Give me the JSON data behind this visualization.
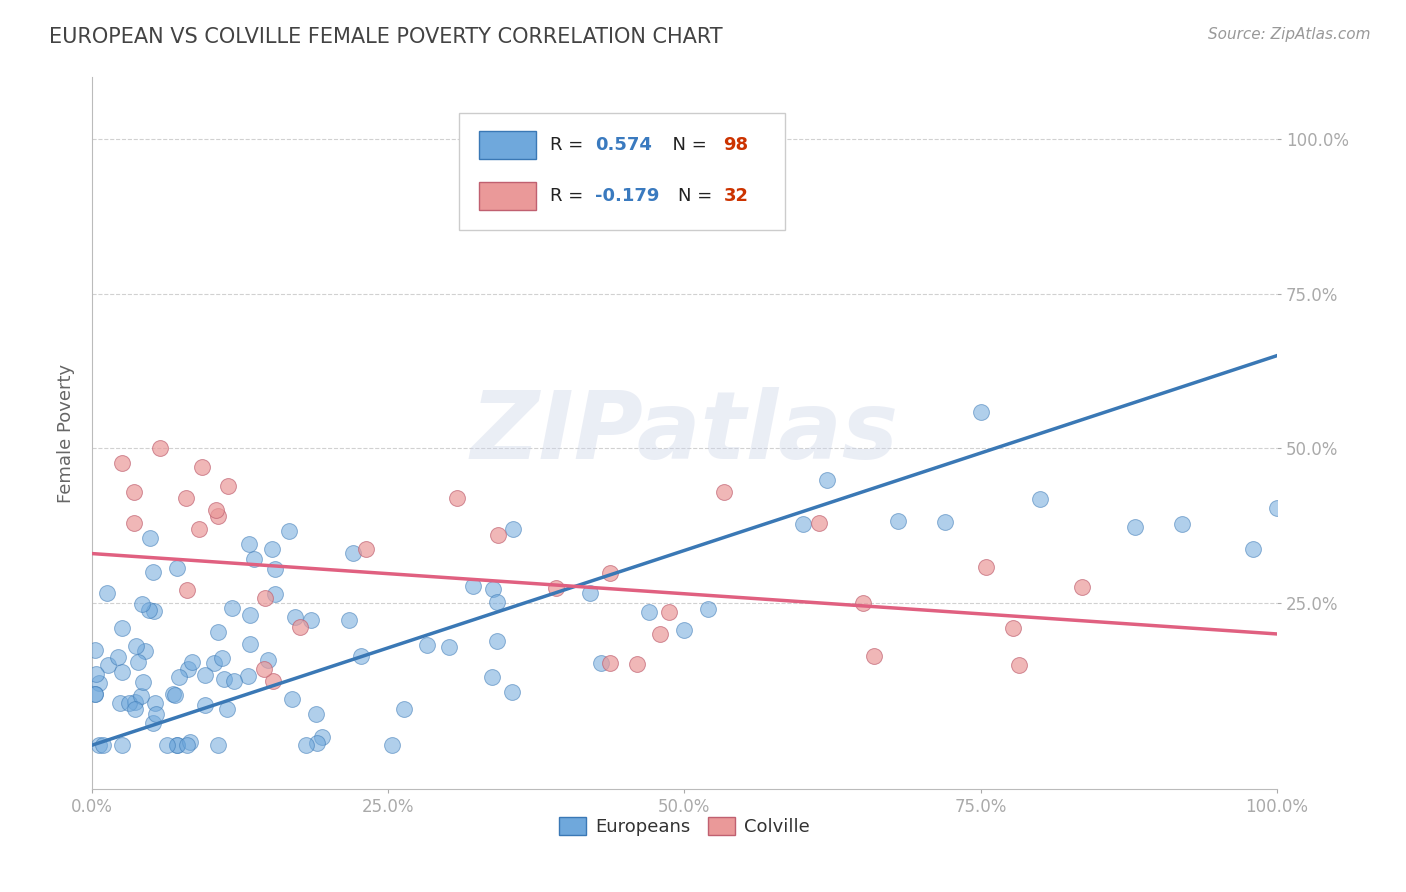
{
  "title": "EUROPEAN VS COLVILLE FEMALE POVERTY CORRELATION CHART",
  "source": "Source: ZipAtlas.com",
  "ylabel": "Female Poverty",
  "xlim": [
    0,
    1
  ],
  "ylim": [
    -0.05,
    1.1
  ],
  "xticks": [
    0,
    0.25,
    0.5,
    0.75,
    1.0
  ],
  "yticks": [
    0.25,
    0.5,
    0.75,
    1.0
  ],
  "xticklabels": [
    "0.0%",
    "25.0%",
    "50.0%",
    "75.0%",
    "100.0%"
  ],
  "yticklabels": [
    "25.0%",
    "50.0%",
    "75.0%",
    "100.0%"
  ],
  "blue_color": "#6fa8dc",
  "pink_color": "#ea9999",
  "blue_line_color": "#3a78b5",
  "pink_line_color": "#e06080",
  "legend_r_blue": "0.574",
  "legend_n_blue": "98",
  "legend_r_pink": "-0.179",
  "legend_n_pink": "32",
  "blue_trend_x": [
    0.0,
    1.0
  ],
  "blue_trend_y_start": 0.02,
  "blue_trend_y_end": 0.65,
  "pink_trend_x": [
    0.0,
    1.0
  ],
  "pink_trend_y_start": 0.33,
  "pink_trend_y_end": 0.2,
  "watermark": "ZIPatlas",
  "background_color": "#ffffff",
  "grid_color": "#cccccc",
  "title_color": "#434343",
  "axis_label_color": "#666666",
  "tick_color": "#4a86c8",
  "legend_text_color_label": "#222222",
  "legend_r_color": "#3a7abf",
  "legend_n_color": "#cc3300"
}
